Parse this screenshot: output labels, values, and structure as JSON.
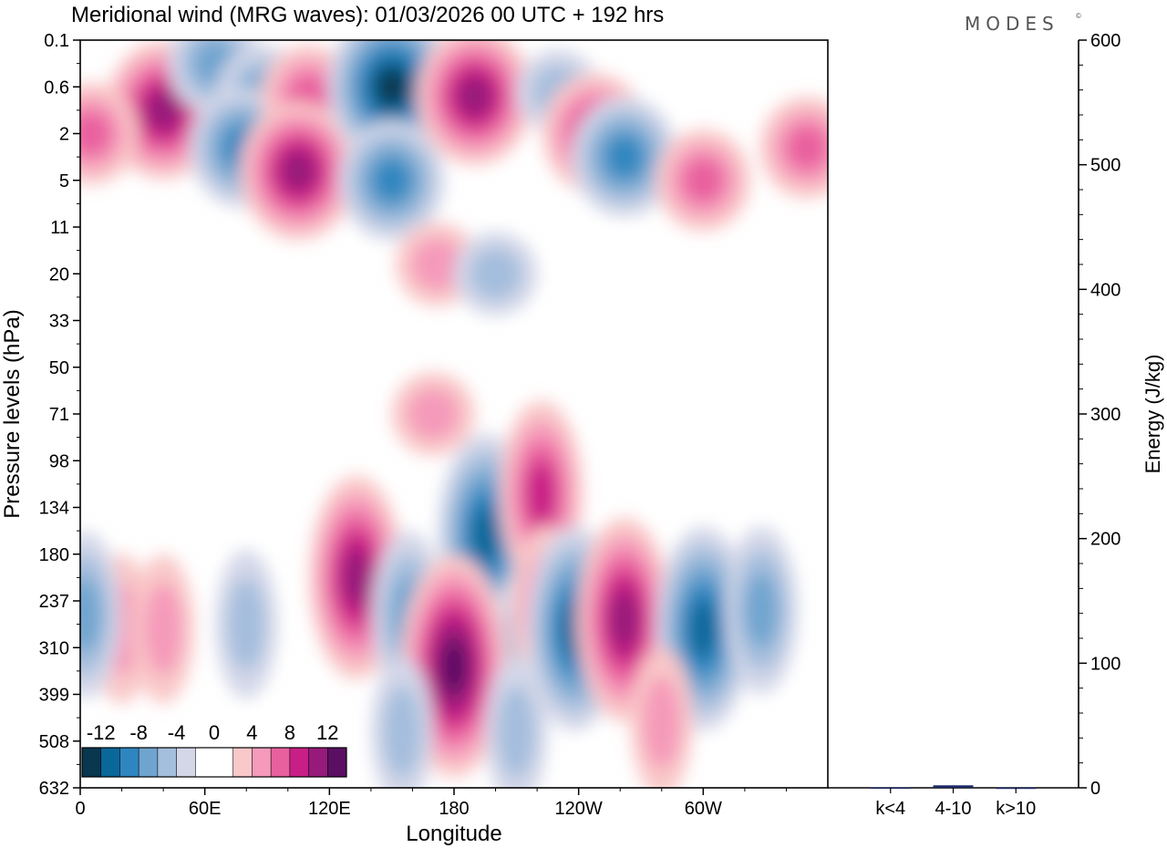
{
  "chart_data": {
    "type": "heatmap",
    "title": "Meridional wind (MRG waves):  01/03/2026  00 UTC  + 192 hrs",
    "brand": "MODES",
    "brand_mark": "©",
    "xlabel": "Longitude",
    "ylabel": "Pressure levels (hPa)",
    "x_ticks": [
      "0",
      "60E",
      "120E",
      "180",
      "120W",
      "60W"
    ],
    "y_ticks": [
      "0.1",
      "0.6",
      "2",
      "5",
      "11",
      "20",
      "33",
      "50",
      "71",
      "98",
      "134",
      "180",
      "237",
      "310",
      "399",
      "508",
      "632"
    ],
    "colorbar": {
      "labels": [
        "-12",
        "-8",
        "-4",
        "0",
        "4",
        "8",
        "12"
      ],
      "colors": [
        "#08374f",
        "#0a679a",
        "#2e86c0",
        "#6fa4cf",
        "#a4bedd",
        "#d3d7e8",
        "#ffffff",
        "#ffffff",
        "#f9c8c8",
        "#f59aba",
        "#e9609f",
        "#c81f86",
        "#961a7a",
        "#5a0f63"
      ]
    },
    "energy_panel": {
      "ylabel": "Energy (J/kg)",
      "ylim": [
        0,
        600
      ],
      "ticks": [
        "0",
        "100",
        "200",
        "300",
        "400",
        "500",
        "600"
      ],
      "categories": [
        "k<4",
        "4-10",
        "k>10"
      ],
      "values": [
        0.3,
        2,
        0.2
      ]
    },
    "features": [
      {
        "lon": 40,
        "lev": 1.5,
        "v": 10
      },
      {
        "lon": 65,
        "lev": 0.5,
        "v": -6
      },
      {
        "lon": 88,
        "lev": 1.2,
        "v": -6
      },
      {
        "lon": 78,
        "lev": 2.3,
        "v": -8
      },
      {
        "lon": 110,
        "lev": 1.2,
        "v": 6
      },
      {
        "lon": 105,
        "lev": 2.8,
        "v": 11
      },
      {
        "lon": 150,
        "lev": 1.0,
        "v": -14
      },
      {
        "lon": 150,
        "lev": 3.0,
        "v": -8
      },
      {
        "lon": 190,
        "lev": 1.2,
        "v": 12
      },
      {
        "lon": 230,
        "lev": 1.1,
        "v": -4
      },
      {
        "lon": 248,
        "lev": 2.0,
        "v": 8
      },
      {
        "lon": 262,
        "lev": 2.5,
        "v": -8
      },
      {
        "lon": 5,
        "lev": 2.0,
        "v": 6
      },
      {
        "lon": 300,
        "lev": 3.0,
        "v": 6
      },
      {
        "lon": 350,
        "lev": 2.3,
        "v": 6
      },
      {
        "lon": 172,
        "lev": 4.8,
        "v": 4
      },
      {
        "lon": 200,
        "lev": 5.0,
        "v": -4
      },
      {
        "lon": 170,
        "lev": 8.0,
        "v": 4
      },
      {
        "lon": 133,
        "lev": 11.5,
        "v": 12
      },
      {
        "lon": 195,
        "lev": 10.6,
        "v": -12
      },
      {
        "lon": 222,
        "lev": 9.7,
        "v": 8
      },
      {
        "lon": 212,
        "lev": 13.0,
        "v": -4
      },
      {
        "lon": 225,
        "lev": 12.2,
        "v": 6
      },
      {
        "lon": 238,
        "lev": 12.6,
        "v": -12
      },
      {
        "lon": 262,
        "lev": 12.4,
        "v": 12
      },
      {
        "lon": 300,
        "lev": 12.6,
        "v": -12
      },
      {
        "lon": 328,
        "lev": 12.2,
        "v": -6
      },
      {
        "lon": 158,
        "lev": 12.3,
        "v": -6
      },
      {
        "lon": 180,
        "lev": 13.4,
        "v": 16
      },
      {
        "lon": 20,
        "lev": 12.6,
        "v": 4
      },
      {
        "lon": 40,
        "lev": 12.6,
        "v": 4
      },
      {
        "lon": 80,
        "lev": 12.5,
        "v": -4
      },
      {
        "lon": 2,
        "lev": 12.3,
        "v": -6
      },
      {
        "lon": 155,
        "lev": 14.8,
        "v": -4
      },
      {
        "lon": 210,
        "lev": 14.8,
        "v": -4
      },
      {
        "lon": 280,
        "lev": 14.6,
        "v": 4
      }
    ]
  }
}
